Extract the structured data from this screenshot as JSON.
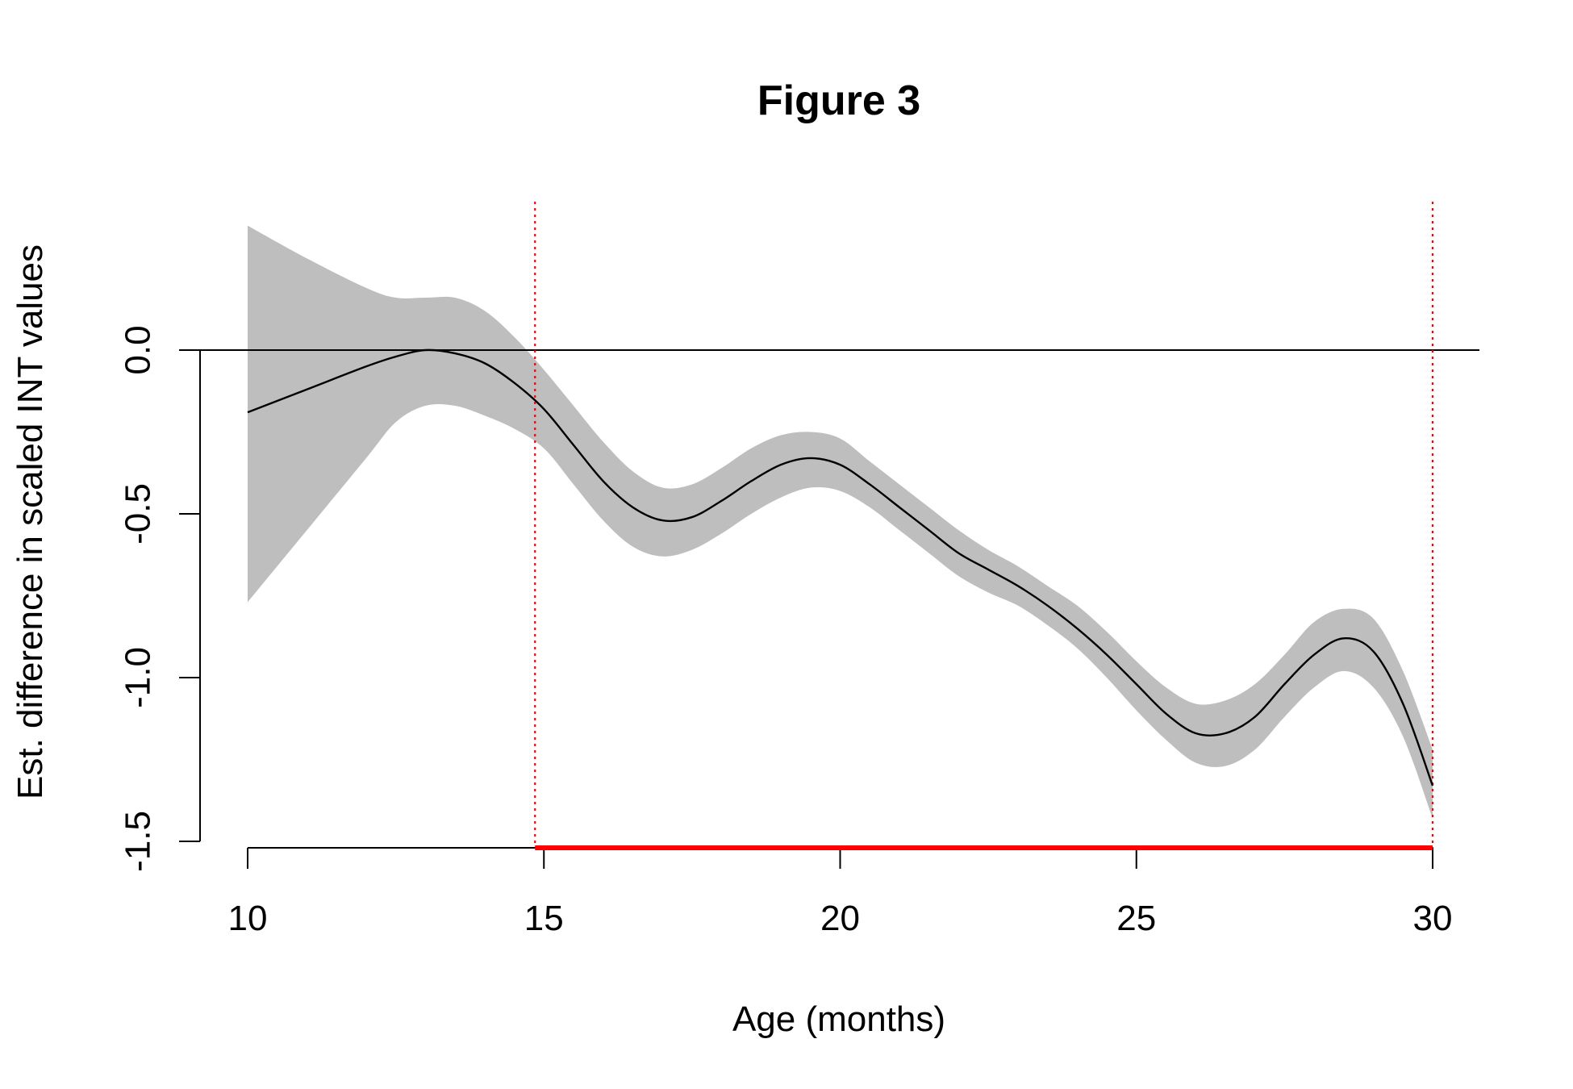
{
  "chart_data": {
    "type": "line",
    "title": "Figure 3",
    "xlabel": "Age (months)",
    "ylabel": "Est. difference in scaled INT values",
    "xlim": [
      10,
      30
    ],
    "ylim": [
      -1.5,
      0.0
    ],
    "x_ticks": [
      10,
      15,
      20,
      25,
      30
    ],
    "x_tick_labels": [
      "10",
      "15",
      "20",
      "25",
      "30"
    ],
    "y_ticks": [
      0.0,
      -0.5,
      -1.0,
      -1.5
    ],
    "y_tick_labels": [
      "0.0",
      "-0.5",
      "-1.0",
      "-1.5"
    ],
    "grid": false,
    "colors": {
      "line": "#000000",
      "band": "#bebebe",
      "significance": "#ff0000",
      "reference_line": "#000000"
    },
    "x": [
      10,
      11,
      12,
      12.5,
      13,
      13.5,
      14,
      14.5,
      15,
      15.5,
      16,
      16.5,
      17,
      17.5,
      18,
      18.5,
      19,
      19.5,
      20,
      20.5,
      21,
      21.5,
      22,
      22.5,
      23,
      23.5,
      24,
      24.5,
      25,
      25.5,
      26,
      26.5,
      27,
      27.5,
      28,
      28.5,
      29,
      29.5,
      30
    ],
    "series": [
      {
        "values": [
          -0.19,
          -0.12,
          -0.05,
          -0.02,
          0.0,
          -0.01,
          -0.04,
          -0.1,
          -0.18,
          -0.29,
          -0.4,
          -0.48,
          -0.52,
          -0.51,
          -0.46,
          -0.4,
          -0.35,
          -0.33,
          -0.35,
          -0.41,
          -0.48,
          -0.55,
          -0.62,
          -0.67,
          -0.72,
          -0.78,
          -0.85,
          -0.93,
          -1.02,
          -1.11,
          -1.17,
          -1.17,
          -1.12,
          -1.02,
          -0.93,
          -0.88,
          -0.92,
          -1.08,
          -1.33
        ]
      }
    ],
    "band": {
      "upper": [
        0.38,
        0.28,
        0.19,
        0.16,
        0.16,
        0.16,
        0.12,
        0.04,
        -0.06,
        -0.17,
        -0.28,
        -0.37,
        -0.42,
        -0.41,
        -0.36,
        -0.3,
        -0.26,
        -0.25,
        -0.27,
        -0.34,
        -0.41,
        -0.48,
        -0.55,
        -0.61,
        -0.66,
        -0.72,
        -0.78,
        -0.86,
        -0.95,
        -1.03,
        -1.08,
        -1.07,
        -1.02,
        -0.93,
        -0.83,
        -0.79,
        -0.82,
        -0.98,
        -1.22
      ],
      "lower": [
        -0.77,
        -0.55,
        -0.33,
        -0.22,
        -0.17,
        -0.17,
        -0.2,
        -0.24,
        -0.3,
        -0.41,
        -0.52,
        -0.6,
        -0.63,
        -0.61,
        -0.56,
        -0.5,
        -0.45,
        -0.42,
        -0.43,
        -0.48,
        -0.55,
        -0.62,
        -0.69,
        -0.74,
        -0.78,
        -0.84,
        -0.91,
        -1.0,
        -1.1,
        -1.19,
        -1.26,
        -1.27,
        -1.22,
        -1.12,
        -1.03,
        -0.98,
        -1.03,
        -1.18,
        -1.43
      ]
    },
    "reference_line_y": 0.0,
    "significance_region": [
      14.85,
      30
    ]
  }
}
